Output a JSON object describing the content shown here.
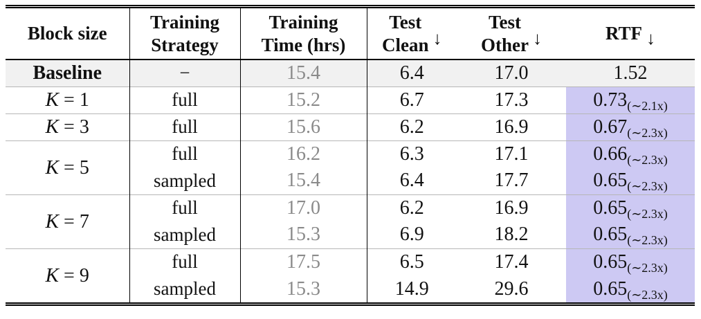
{
  "table": {
    "header": [
      {
        "lines": [
          "Block size"
        ],
        "arrow": ""
      },
      {
        "lines": [
          "Training",
          "Strategy"
        ],
        "arrow": ""
      },
      {
        "lines": [
          "Training",
          "Time (hrs)"
        ],
        "arrow": ""
      },
      {
        "lines": [
          "Test",
          "Clean"
        ],
        "arrow": "↓"
      },
      {
        "lines": [
          "Test",
          "Other"
        ],
        "arrow": "↓"
      },
      {
        "lines": [
          "RTF"
        ],
        "arrow": "↓"
      }
    ],
    "groups": [
      {
        "block": {
          "label": "Baseline"
        },
        "baseline": true,
        "rows": [
          {
            "strategy": "−",
            "time": "15.4",
            "clean": "6.4",
            "other": "17.0",
            "rtf": "1.52",
            "rtf_note": "",
            "highlight": false
          }
        ]
      },
      {
        "block": {
          "variable": "K",
          "operator": "=",
          "value": "1"
        },
        "rows": [
          {
            "strategy": "full",
            "time": "15.2",
            "clean": "6.7",
            "other": "17.3",
            "rtf": "0.73",
            "rtf_note": "(∼2.1x)",
            "highlight": true
          }
        ]
      },
      {
        "block": {
          "variable": "K",
          "operator": "=",
          "value": "3"
        },
        "rows": [
          {
            "strategy": "full",
            "time": "15.6",
            "clean": "6.2",
            "other": "16.9",
            "rtf": "0.67",
            "rtf_note": "(∼2.3x)",
            "highlight": true
          }
        ]
      },
      {
        "block": {
          "variable": "K",
          "operator": "=",
          "value": "5"
        },
        "rows": [
          {
            "strategy": "full",
            "time": "16.2",
            "clean": "6.3",
            "other": "17.1",
            "rtf": "0.66",
            "rtf_note": "(∼2.3x)",
            "highlight": true
          },
          {
            "strategy": "sampled",
            "time": "15.4",
            "clean": "6.4",
            "other": "17.7",
            "rtf": "0.65",
            "rtf_note": "(∼2.3x)",
            "highlight": true
          }
        ]
      },
      {
        "block": {
          "variable": "K",
          "operator": "=",
          "value": "7"
        },
        "rows": [
          {
            "strategy": "full",
            "time": "17.0",
            "clean": "6.2",
            "other": "16.9",
            "rtf": "0.65",
            "rtf_note": "(∼2.3x)",
            "highlight": true
          },
          {
            "strategy": "sampled",
            "time": "15.3",
            "clean": "6.9",
            "other": "18.2",
            "rtf": "0.65",
            "rtf_note": "(∼2.3x)",
            "highlight": true
          }
        ]
      },
      {
        "block": {
          "variable": "K",
          "operator": "=",
          "value": "9"
        },
        "rows": [
          {
            "strategy": "full",
            "time": "17.5",
            "clean": "6.5",
            "other": "17.4",
            "rtf": "0.65",
            "rtf_note": "(∼2.3x)",
            "highlight": true
          },
          {
            "strategy": "sampled",
            "time": "15.3",
            "clean": "14.9",
            "other": "29.6",
            "rtf": "0.65",
            "rtf_note": "(∼2.3x)",
            "highlight": true
          }
        ]
      }
    ],
    "colors": {
      "highlight": "#cdc9f3",
      "baseline_row_bg": "#f1f1f1",
      "muted_text": "#8a8a8a",
      "group_separator": "#b6b6b6",
      "rule": "#000000"
    }
  }
}
